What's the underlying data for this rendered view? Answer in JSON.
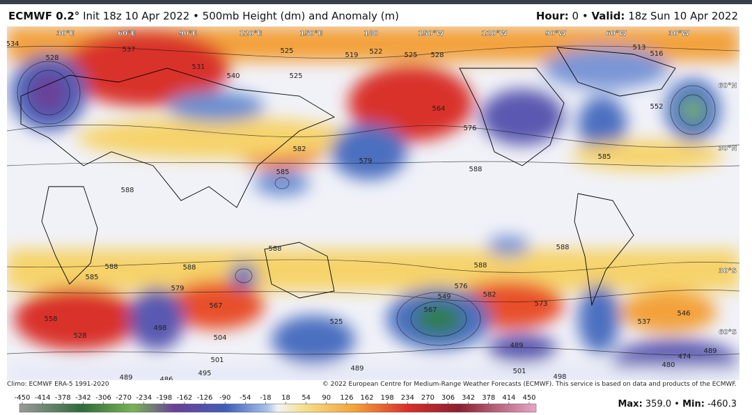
{
  "header": {
    "title_bold": "ECMWF 0.2°",
    "title_rest": "Init 18z 10 Apr 2022 • 500mb Height (dm) and Anomaly (m)",
    "hour_label": "Hour:",
    "hour_value": "0 •",
    "valid_label": "Valid:",
    "valid_value": "18z Sun 10 Apr 2022"
  },
  "map": {
    "graticule_labels": [
      "30°E",
      "60°E",
      "90°E",
      "120°E",
      "150°E",
      "180",
      "150°W",
      "120°W",
      "90°W",
      "60°W",
      "30°W",
      "60°N",
      "30°N",
      "30°S",
      "60°S"
    ],
    "contour_labels": [
      "534",
      "528",
      "537",
      "531",
      "540",
      "525",
      "525",
      "519",
      "522",
      "525",
      "528",
      "513",
      "516",
      "552",
      "564",
      "576",
      "582",
      "579",
      "588",
      "585",
      "585",
      "588",
      "588",
      "588",
      "588",
      "585",
      "588",
      "579",
      "588",
      "576",
      "582",
      "573",
      "567",
      "558",
      "528",
      "498",
      "504",
      "525",
      "549",
      "567",
      "489",
      "501",
      "498",
      "495",
      "489",
      "486",
      "501",
      "489",
      "537",
      "546",
      "489",
      "474",
      "480"
    ]
  },
  "footer": {
    "climo": "Climo: ECMWF ERA-5 1991-2020",
    "copyright": "© 2022 European Centre for Medium-Range Weather Forecasts (ECMWF). This service is based on data and products of the ECMWF."
  },
  "colorbar": {
    "ticks": [
      -450,
      -414,
      -378,
      -342,
      -306,
      -270,
      -234,
      -198,
      -162,
      -126,
      -90,
      -54,
      -18,
      18,
      54,
      90,
      126,
      162,
      198,
      234,
      270,
      306,
      342,
      378,
      414,
      450
    ]
  },
  "stats": {
    "max_label": "Max:",
    "max": "359.0",
    "sep": "•",
    "min_label": "Min:",
    "min": "-460.3"
  }
}
